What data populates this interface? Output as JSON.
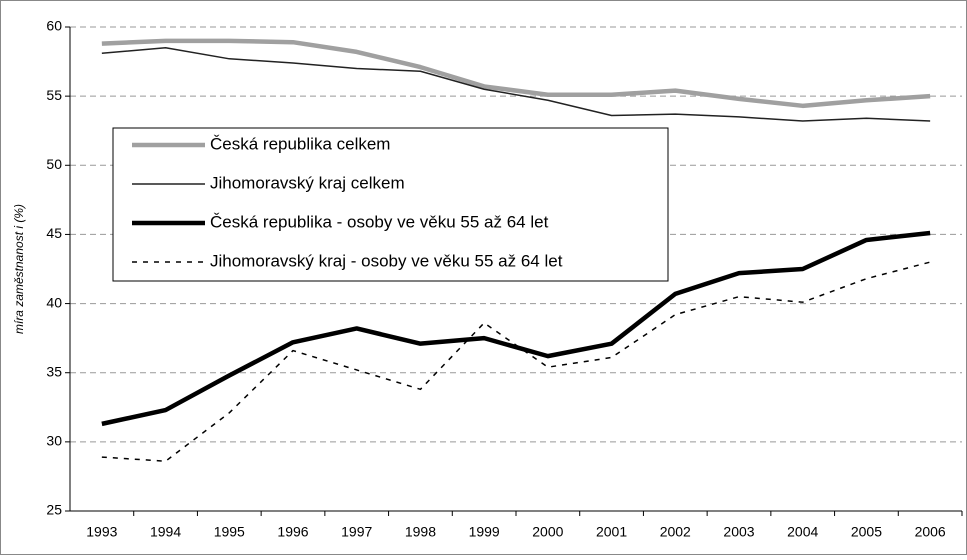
{
  "chart_data": {
    "type": "line",
    "y_label": "míra zaměstnanost i (%)",
    "categories": [
      "1993",
      "1994",
      "1995",
      "1996",
      "1997",
      "1998",
      "1999",
      "2000",
      "2001",
      "2002",
      "2003",
      "2004",
      "2005",
      "2006"
    ],
    "series": [
      {
        "name": "Česká republika celkem",
        "color": "#a0a0a0",
        "values": [
          58.8,
          59.0,
          59.0,
          58.9,
          58.2,
          57.1,
          55.7,
          55.1,
          55.1,
          55.4,
          54.8,
          54.3,
          54.7,
          55.0
        ]
      },
      {
        "name": "Jihomoravský kraj celkem",
        "color": "#222222",
        "values": [
          58.1,
          58.5,
          57.7,
          57.4,
          57.0,
          56.8,
          55.5,
          54.7,
          53.6,
          53.7,
          53.5,
          53.2,
          53.4,
          53.2
        ]
      },
      {
        "name": "Česká republika - osoby ve věku 55 až 64 let",
        "color": "#000000",
        "values": [
          31.3,
          32.3,
          34.8,
          37.2,
          38.2,
          37.1,
          37.5,
          36.2,
          37.1,
          40.7,
          42.2,
          42.5,
          44.6,
          45.1
        ]
      },
      {
        "name": "Jihomoravský kraj - osoby ve věku 55 až 64 let",
        "color": "#000000",
        "values": [
          28.9,
          28.6,
          32.1,
          36.6,
          35.2,
          33.8,
          38.6,
          35.4,
          36.1,
          39.2,
          40.5,
          40.1,
          41.8,
          43.0
        ]
      }
    ],
    "ylim": [
      25,
      60
    ],
    "yticks": [
      25,
      30,
      35,
      40,
      45,
      50,
      55,
      60
    ],
    "grid": true
  }
}
